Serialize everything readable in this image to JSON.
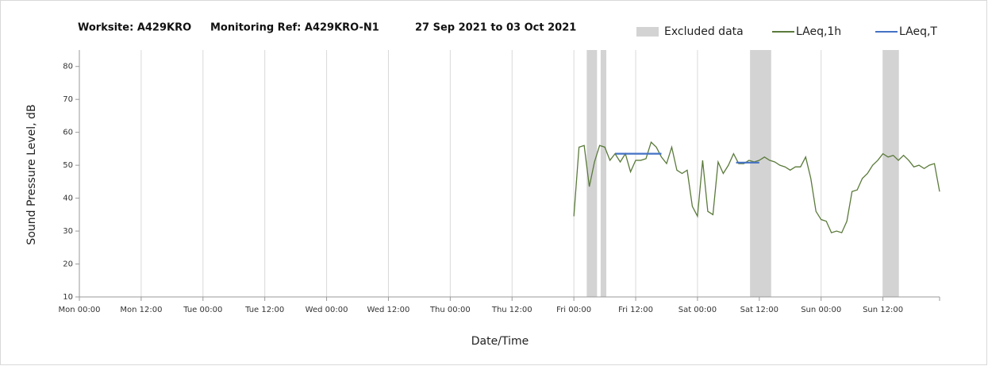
{
  "chart_data": {
    "type": "line",
    "title_parts": [
      "Worksite: A429KRO",
      "Monitoring Ref: A429KRO-N1",
      "27 Sep 2021 to 03 Oct 2021"
    ],
    "xlabel": "Date/Time",
    "ylabel": "Sound Pressure Level, dB",
    "xlim": [
      0,
      167
    ],
    "ylim": [
      10,
      85
    ],
    "yticks": [
      10,
      20,
      30,
      40,
      50,
      60,
      70,
      80
    ],
    "xticks": [
      {
        "value": 0,
        "label": "Mon 00:00"
      },
      {
        "value": 12,
        "label": "Mon 12:00"
      },
      {
        "value": 24,
        "label": "Tue 00:00"
      },
      {
        "value": 36,
        "label": "Tue 12:00"
      },
      {
        "value": 48,
        "label": "Wed 00:00"
      },
      {
        "value": 60,
        "label": "Wed 12:00"
      },
      {
        "value": 72,
        "label": "Thu 00:00"
      },
      {
        "value": 84,
        "label": "Thu 12:00"
      },
      {
        "value": 96,
        "label": "Fri 00:00"
      },
      {
        "value": 108,
        "label": "Fri 12:00"
      },
      {
        "value": 120,
        "label": "Sat 00:00"
      },
      {
        "value": 132,
        "label": "Sat 12:00"
      },
      {
        "value": 144,
        "label": "Sun 00:00"
      },
      {
        "value": 156,
        "label": "Sun 12:00"
      }
    ],
    "grid": true,
    "excluded_name": "Excluded data",
    "excluded_color": "#d3d3d3",
    "excluded": [
      [
        98.5,
        100.5
      ],
      [
        101.2,
        102.3
      ],
      [
        130.2,
        134.3
      ],
      [
        156,
        159.1
      ]
    ],
    "series": [
      {
        "name": "LAeq,1h",
        "color": "#5a7a3a",
        "x": [
          96,
          97,
          98,
          99,
          100,
          101,
          102,
          103,
          104,
          105,
          106,
          107,
          108,
          109,
          110,
          111,
          112,
          113,
          114,
          115,
          116,
          117,
          118,
          119,
          120,
          121,
          122,
          123,
          124,
          125,
          126,
          127,
          128,
          129,
          130,
          131,
          132,
          133,
          134,
          135,
          136,
          137,
          138,
          139,
          140,
          141,
          142,
          143,
          144,
          145,
          146,
          147,
          148,
          149,
          150,
          151,
          152,
          153,
          154,
          155,
          156,
          157,
          158,
          159,
          160,
          161,
          162,
          163,
          164,
          165,
          166,
          167
        ],
        "values": [
          34.5,
          55.5,
          56,
          43.5,
          51,
          56,
          55.5,
          51.5,
          53.5,
          51,
          53.5,
          48,
          51.5,
          51.5,
          52,
          57,
          55.5,
          52.5,
          50.5,
          55.5,
          48.5,
          47.5,
          48.5,
          37.5,
          34.5,
          51.5,
          36,
          35,
          51,
          47.5,
          50,
          53.5,
          50.5,
          50.5,
          51.5,
          51,
          51.5,
          52.5,
          51.5,
          51,
          50,
          49.5,
          48.5,
          49.5,
          49.5,
          52.5,
          46,
          36,
          33.5,
          33,
          29.5,
          30,
          29.5,
          33,
          42,
          42.5,
          46,
          47.5,
          50,
          51.5,
          53.5,
          52.5,
          53,
          51.5,
          53,
          51.5,
          49.5,
          50,
          49,
          50,
          50.5,
          42
        ]
      },
      {
        "name": "LAeq,T",
        "color": "#4472c4",
        "x": [
          104,
          113,
          120,
          127.5,
          132
        ],
        "values": [
          53.5,
          53.5,
          null,
          50.8,
          50.8
        ]
      }
    ]
  }
}
